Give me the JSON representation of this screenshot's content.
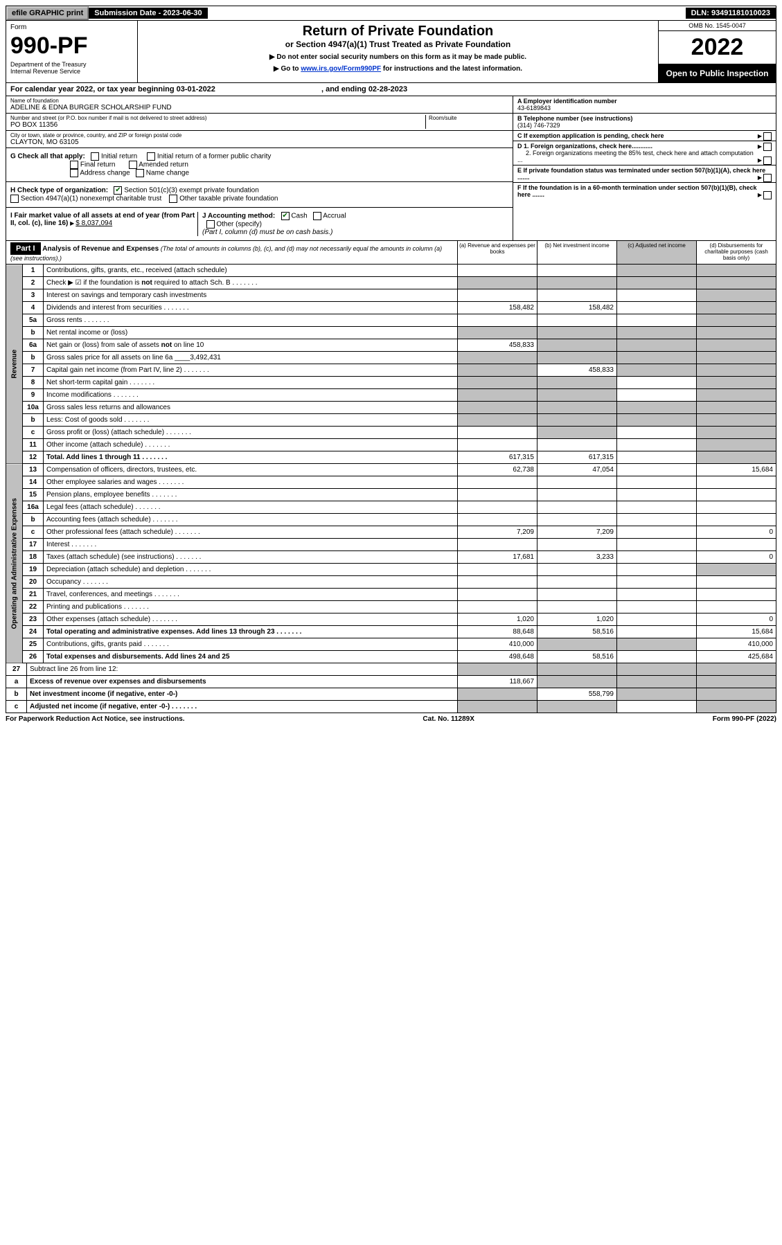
{
  "topbar": {
    "efile": "efile GRAPHIC print",
    "submission": "Submission Date - 2023-06-30",
    "dln": "DLN: 93491181010023"
  },
  "header": {
    "form_label": "Form",
    "form_number": "990-PF",
    "dept": "Department of the Treasury",
    "irs": "Internal Revenue Service",
    "title": "Return of Private Foundation",
    "subtitle": "or Section 4947(a)(1) Trust Treated as Private Foundation",
    "note1": "▶ Do not enter social security numbers on this form as it may be made public.",
    "note2_prefix": "▶ Go to ",
    "note2_link": "www.irs.gov/Form990PF",
    "note2_suffix": " for instructions and the latest information.",
    "omb": "OMB No. 1545-0047",
    "year": "2022",
    "open": "Open to Public Inspection"
  },
  "calendar": {
    "text": "For calendar year 2022, or tax year beginning 03-01-2022",
    "ending": ", and ending 02-28-2023"
  },
  "entity": {
    "name_label": "Name of foundation",
    "name": "ADELINE & EDNA BURGER SCHOLARSHIP FUND",
    "addr_label": "Number and street (or P.O. box number if mail is not delivered to street address)",
    "room_label": "Room/suite",
    "addr": "PO BOX 11356",
    "city_label": "City or town, state or province, country, and ZIP or foreign postal code",
    "city": "CLAYTON, MO  63105",
    "ein_label": "A Employer identification number",
    "ein": "43-6189843",
    "phone_label": "B Telephone number (see instructions)",
    "phone": "(314) 746-7329",
    "c_label": "C If exemption application is pending, check here",
    "d1": "D 1. Foreign organizations, check here............",
    "d2": "2. Foreign organizations meeting the 85% test, check here and attach computation ...",
    "e": "E If private foundation status was terminated under section 507(b)(1)(A), check here .......",
    "f": "F If the foundation is in a 60-month termination under section 507(b)(1)(B), check here .......",
    "g_label": "G Check all that apply:",
    "g_opts": [
      "Initial return",
      "Initial return of a former public charity",
      "Final return",
      "Amended return",
      "Address change",
      "Name change"
    ],
    "h_label": "H Check type of organization:",
    "h1": "Section 501(c)(3) exempt private foundation",
    "h2": "Section 4947(a)(1) nonexempt charitable trust",
    "h3": "Other taxable private foundation",
    "i_label": "I Fair market value of all assets at end of year (from Part II, col. (c), line 16)",
    "i_val": "$  8,037,094",
    "j_label": "J Accounting method:",
    "j_cash": "Cash",
    "j_accrual": "Accrual",
    "j_other": "Other (specify)",
    "j_note": "(Part I, column (d) must be on cash basis.)"
  },
  "part1": {
    "label": "Part I",
    "title": "Analysis of Revenue and Expenses",
    "sub": "(The total of amounts in columns (b), (c), and (d) may not necessarily equal the amounts in column (a) (see instructions).)",
    "col_a": "(a) Revenue and expenses per books",
    "col_b": "(b) Net investment income",
    "col_c": "(c) Adjusted net income",
    "col_d": "(d) Disbursements for charitable purposes (cash basis only)"
  },
  "sidebars": {
    "revenue": "Revenue",
    "expenses": "Operating and Administrative Expenses"
  },
  "lines": [
    {
      "n": "1",
      "d": "Contributions, gifts, grants, etc., received (attach schedule)",
      "a": "",
      "b": "",
      "c_shade": true,
      "d_shade": true
    },
    {
      "n": "2",
      "d": "Check ▶ ☑ if the foundation is not required to attach Sch. B",
      "dots": true,
      "all_shade": true
    },
    {
      "n": "3",
      "d": "Interest on savings and temporary cash investments",
      "a": "",
      "b": "",
      "c": "",
      "d_shade": true
    },
    {
      "n": "4",
      "d": "Dividends and interest from securities",
      "dots": true,
      "a": "158,482",
      "b": "158,482",
      "c": "",
      "d_shade": true
    },
    {
      "n": "5a",
      "d": "Gross rents",
      "dots": true,
      "a": "",
      "b": "",
      "c": "",
      "d_shade": true
    },
    {
      "n": "b",
      "d": "Net rental income or (loss)",
      "blank": true,
      "all_shade": true
    },
    {
      "n": "6a",
      "d": "Net gain or (loss) from sale of assets not on line 10",
      "a": "458,833",
      "b_shade": true,
      "c_shade": true,
      "d_shade": true
    },
    {
      "n": "b",
      "d": "Gross sales price for all assets on line 6a",
      "inset": "3,492,431",
      "all_shade": true
    },
    {
      "n": "7",
      "d": "Capital gain net income (from Part IV, line 2)",
      "dots": true,
      "a_shade": true,
      "b": "458,833",
      "c_shade": true,
      "d_shade": true
    },
    {
      "n": "8",
      "d": "Net short-term capital gain",
      "dots": true,
      "a_shade": true,
      "b_shade": true,
      "c": "",
      "d_shade": true
    },
    {
      "n": "9",
      "d": "Income modifications",
      "dots": true,
      "a_shade": true,
      "b_shade": true,
      "c": "",
      "d_shade": true
    },
    {
      "n": "10a",
      "d": "Gross sales less returns and allowances",
      "blank": true,
      "all_shade": true
    },
    {
      "n": "b",
      "d": "Less: Cost of goods sold",
      "dots": true,
      "blank": true,
      "all_shade": true
    },
    {
      "n": "c",
      "d": "Gross profit or (loss) (attach schedule)",
      "dots": true,
      "a": "",
      "b_shade": true,
      "c": "",
      "d_shade": true
    },
    {
      "n": "11",
      "d": "Other income (attach schedule)",
      "dots": true,
      "a": "",
      "b": "",
      "c": "",
      "d_shade": true
    },
    {
      "n": "12",
      "d": "Total. Add lines 1 through 11",
      "dots": true,
      "bold": true,
      "a": "617,315",
      "b": "617,315",
      "c": "",
      "d_shade": true
    }
  ],
  "exp_lines": [
    {
      "n": "13",
      "d": "Compensation of officers, directors, trustees, etc.",
      "a": "62,738",
      "b": "47,054",
      "c": "",
      "dv": "15,684"
    },
    {
      "n": "14",
      "d": "Other employee salaries and wages",
      "dots": true,
      "a": "",
      "b": "",
      "c": "",
      "dv": ""
    },
    {
      "n": "15",
      "d": "Pension plans, employee benefits",
      "dots": true,
      "a": "",
      "b": "",
      "c": "",
      "dv": ""
    },
    {
      "n": "16a",
      "d": "Legal fees (attach schedule)",
      "dots": true,
      "a": "",
      "b": "",
      "c": "",
      "dv": ""
    },
    {
      "n": "b",
      "d": "Accounting fees (attach schedule)",
      "dots": true,
      "a": "",
      "b": "",
      "c": "",
      "dv": ""
    },
    {
      "n": "c",
      "d": "Other professional fees (attach schedule)",
      "dots": true,
      "a": "7,209",
      "b": "7,209",
      "c": "",
      "dv": "0"
    },
    {
      "n": "17",
      "d": "Interest",
      "dots": true,
      "a": "",
      "b": "",
      "c": "",
      "dv": ""
    },
    {
      "n": "18",
      "d": "Taxes (attach schedule) (see instructions)",
      "dots": true,
      "a": "17,681",
      "b": "3,233",
      "c": "",
      "dv": "0"
    },
    {
      "n": "19",
      "d": "Depreciation (attach schedule) and depletion",
      "dots": true,
      "a": "",
      "b": "",
      "c": "",
      "d_shade": true
    },
    {
      "n": "20",
      "d": "Occupancy",
      "dots": true,
      "a": "",
      "b": "",
      "c": "",
      "dv": ""
    },
    {
      "n": "21",
      "d": "Travel, conferences, and meetings",
      "dots": true,
      "a": "",
      "b": "",
      "c": "",
      "dv": ""
    },
    {
      "n": "22",
      "d": "Printing and publications",
      "dots": true,
      "a": "",
      "b": "",
      "c": "",
      "dv": ""
    },
    {
      "n": "23",
      "d": "Other expenses (attach schedule)",
      "dots": true,
      "a": "1,020",
      "b": "1,020",
      "c": "",
      "dv": "0"
    },
    {
      "n": "24",
      "d": "Total operating and administrative expenses. Add lines 13 through 23",
      "dots": true,
      "bold": true,
      "a": "88,648",
      "b": "58,516",
      "c": "",
      "dv": "15,684"
    },
    {
      "n": "25",
      "d": "Contributions, gifts, grants paid",
      "dots": true,
      "a": "410,000",
      "b_shade": true,
      "c_shade": true,
      "dv": "410,000"
    },
    {
      "n": "26",
      "d": "Total expenses and disbursements. Add lines 24 and 25",
      "bold": true,
      "a": "498,648",
      "b": "58,516",
      "c": "",
      "dv": "425,684"
    }
  ],
  "sub_lines": [
    {
      "n": "27",
      "d": "Subtract line 26 from line 12:",
      "all_shade": true
    },
    {
      "n": "a",
      "d": "Excess of revenue over expenses and disbursements",
      "bold": true,
      "a": "118,667",
      "b_shade": true,
      "c_shade": true,
      "d_shade": true
    },
    {
      "n": "b",
      "d": "Net investment income (if negative, enter -0-)",
      "bold": true,
      "a_shade": true,
      "b": "558,799",
      "c_shade": true,
      "d_shade": true
    },
    {
      "n": "c",
      "d": "Adjusted net income (if negative, enter -0-)",
      "dots": true,
      "bold": true,
      "a_shade": true,
      "b_shade": true,
      "c": "",
      "d_shade": true
    }
  ],
  "footer": {
    "left": "For Paperwork Reduction Act Notice, see instructions.",
    "mid": "Cat. No. 11289X",
    "right": "Form 990-PF (2022)"
  }
}
